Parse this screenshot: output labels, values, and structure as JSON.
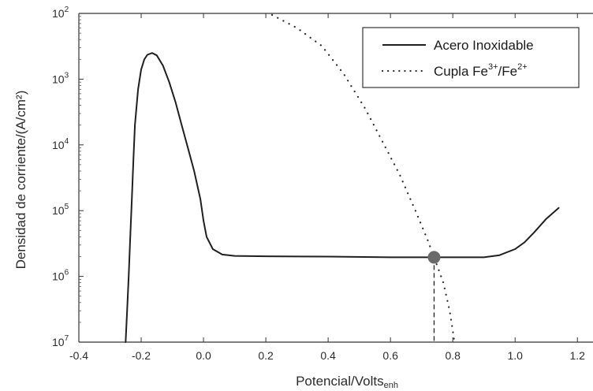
{
  "chart_data": {
    "type": "line",
    "title": "",
    "xlabel": "Potencial/Volts",
    "xlabel_sub": "enh",
    "ylabel": "Densidad de corriente/(A/cm²)",
    "xlim": [
      -0.4,
      1.25
    ],
    "ylim": [
      1e-07,
      0.01
    ],
    "y_scale": "log",
    "grid": false,
    "legend_position": "top-right",
    "x_ticks": [
      {
        "value": -0.4,
        "label": "-0.4"
      },
      {
        "value": -0.2,
        "label": "-0.2"
      },
      {
        "value": 0.0,
        "label": "0.0"
      },
      {
        "value": 0.2,
        "label": "0.2"
      },
      {
        "value": 0.4,
        "label": "0.4"
      },
      {
        "value": 0.6,
        "label": "0.6"
      },
      {
        "value": 0.8,
        "label": "0.8"
      },
      {
        "value": 1.0,
        "label": "1.0"
      },
      {
        "value": 1.2,
        "label": "1.2"
      }
    ],
    "y_ticks": [
      {
        "exp": -2,
        "base": "10",
        "sup": "2"
      },
      {
        "exp": -3,
        "base": "10",
        "sup": "3"
      },
      {
        "exp": -4,
        "base": "10",
        "sup": "4"
      },
      {
        "exp": -5,
        "base": "10",
        "sup": "5"
      },
      {
        "exp": -6,
        "base": "10",
        "sup": "6"
      },
      {
        "exp": -7,
        "base": "10",
        "sup": "7"
      }
    ],
    "series": [
      {
        "name": "Acero Inoxidable",
        "style": "solid",
        "color": "#1f1f1f",
        "points": [
          [
            -0.25,
            1e-07
          ],
          [
            -0.245,
            3e-07
          ],
          [
            -0.24,
            1e-06
          ],
          [
            -0.235,
            4e-06
          ],
          [
            -0.23,
            1.5e-05
          ],
          [
            -0.225,
            6e-05
          ],
          [
            -0.22,
            0.0002
          ],
          [
            -0.21,
            0.0007
          ],
          [
            -0.2,
            0.0014
          ],
          [
            -0.19,
            0.002
          ],
          [
            -0.18,
            0.00235
          ],
          [
            -0.165,
            0.0025
          ],
          [
            -0.15,
            0.0023
          ],
          [
            -0.13,
            0.0016
          ],
          [
            -0.11,
            0.0009
          ],
          [
            -0.09,
            0.00045
          ],
          [
            -0.07,
            0.0002
          ],
          [
            -0.05,
            9e-05
          ],
          [
            -0.03,
            4e-05
          ],
          [
            -0.01,
            1.5e-05
          ],
          [
            0.0,
            7e-06
          ],
          [
            0.01,
            4e-06
          ],
          [
            0.03,
            2.6e-06
          ],
          [
            0.06,
            2.15e-06
          ],
          [
            0.1,
            2.05e-06
          ],
          [
            0.2,
            2.02e-06
          ],
          [
            0.4,
            2e-06
          ],
          [
            0.6,
            1.95e-06
          ],
          [
            0.74,
            1.95e-06
          ],
          [
            0.9,
            1.95e-06
          ],
          [
            0.95,
            2.1e-06
          ],
          [
            1.0,
            2.6e-06
          ],
          [
            1.03,
            3.3e-06
          ],
          [
            1.06,
            4.6e-06
          ],
          [
            1.1,
            7.5e-06
          ],
          [
            1.14,
            1.1e-05
          ]
        ]
      },
      {
        "name": "Cupla Fe³⁺/Fe²⁺",
        "name_parts": [
          "Cupla Fe",
          "3+",
          "/Fe",
          "2+"
        ],
        "style": "dotted",
        "color": "#2a2a2a",
        "points": [
          [
            0.22,
            0.0095
          ],
          [
            0.3,
            0.006
          ],
          [
            0.38,
            0.0032
          ],
          [
            0.45,
            0.0012
          ],
          [
            0.52,
            0.00035
          ],
          [
            0.58,
            0.0001
          ],
          [
            0.63,
            3.5e-05
          ],
          [
            0.68,
            1e-05
          ],
          [
            0.72,
            3.5e-06
          ],
          [
            0.74,
            1.95e-06
          ],
          [
            0.77,
            8e-07
          ],
          [
            0.79,
            3e-07
          ],
          [
            0.8,
            1.5e-07
          ],
          [
            0.805,
            1e-07
          ]
        ]
      }
    ],
    "annotations": [
      {
        "type": "intersection-marker",
        "x": 0.74,
        "y": 1.95e-06,
        "color": "#6a6a6a"
      },
      {
        "type": "dashed-drop-line",
        "x": 0.74,
        "from_y": 1.95e-06,
        "to_y": 1e-07
      }
    ]
  }
}
